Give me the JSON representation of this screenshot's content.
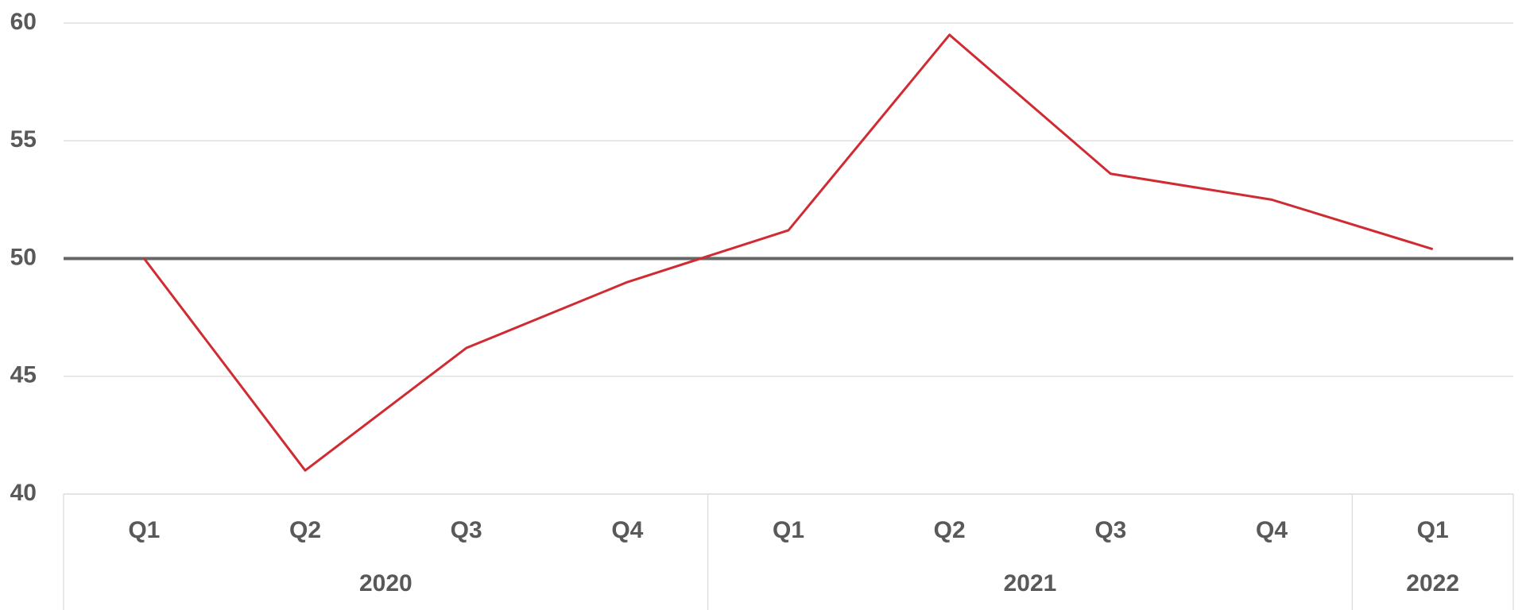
{
  "chart_data": {
    "type": "line",
    "categories": [
      "Q1",
      "Q2",
      "Q3",
      "Q4",
      "Q1",
      "Q2",
      "Q3",
      "Q4",
      "Q1"
    ],
    "groups": [
      {
        "label": "2020",
        "span": 4
      },
      {
        "label": "2021",
        "span": 4
      },
      {
        "label": "2022",
        "span": 1
      }
    ],
    "values": [
      50.0,
      41.0,
      46.2,
      49.0,
      51.2,
      59.5,
      53.6,
      52.5,
      50.4
    ],
    "color": "#d02b33",
    "ylim": [
      40,
      60
    ],
    "yticks": [
      40,
      45,
      50,
      55,
      60
    ],
    "grid": true,
    "reference_line": 50,
    "reference_color": "#666666"
  }
}
